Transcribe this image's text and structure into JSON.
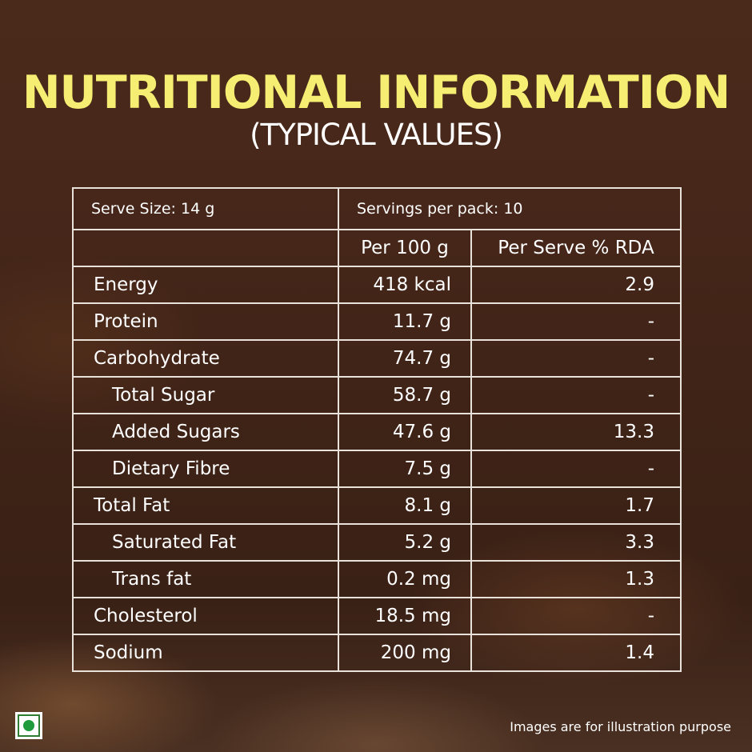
{
  "title": "NUTRITIONAL INFORMATION",
  "subtitle": "(TYPICAL VALUES)",
  "table": {
    "serve_size": "Serve Size: 14 g",
    "servings_per_pack": "Servings per pack: 10",
    "header": {
      "nutrient": "",
      "per_100g": "Per 100 g",
      "per_serve_rda": "Per Serve % RDA"
    },
    "rows": [
      {
        "name": "Energy",
        "per_100g": "418 kcal",
        "rda": "2.9",
        "indent": false
      },
      {
        "name": "Protein",
        "per_100g": "11.7 g",
        "rda": "-",
        "indent": false
      },
      {
        "name": "Carbohydrate",
        "per_100g": "74.7 g",
        "rda": "-",
        "indent": false
      },
      {
        "name": "Total Sugar",
        "per_100g": "58.7 g",
        "rda": "-",
        "indent": true
      },
      {
        "name": "Added Sugars",
        "per_100g": "47.6 g",
        "rda": "13.3",
        "indent": true
      },
      {
        "name": "Dietary Fibre",
        "per_100g": "7.5 g",
        "rda": "-",
        "indent": true
      },
      {
        "name": "Total Fat",
        "per_100g": "8.1 g",
        "rda": "1.7",
        "indent": false
      },
      {
        "name": "Saturated Fat",
        "per_100g": "5.2 g",
        "rda": "3.3",
        "indent": true
      },
      {
        "name": "Trans fat",
        "per_100g": "0.2 mg",
        "rda": "1.3",
        "indent": true
      },
      {
        "name": "Cholesterol",
        "per_100g": "18.5 mg",
        "rda": "-",
        "indent": false
      },
      {
        "name": "Sodium",
        "per_100g": "200 mg",
        "rda": "1.4",
        "indent": false
      }
    ]
  },
  "footer": {
    "veg_mark_icon": "veg-mark-icon",
    "disclaimer": "Images are for illustration purpose"
  },
  "colors": {
    "title": "#f6ee72",
    "text": "#ffffff",
    "border": "#e9e2da",
    "background": "#45261a",
    "veg_mark": "#1f9a3c"
  }
}
